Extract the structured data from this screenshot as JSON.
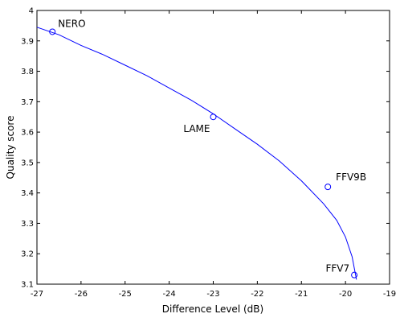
{
  "chart_data": {
    "type": "scatter",
    "title": "",
    "xlabel": "Difference Level (dB)",
    "ylabel": "Quality score",
    "xlim": [
      -27,
      -19
    ],
    "ylim": [
      3.1,
      4
    ],
    "xticks": [
      -27,
      -26,
      -25,
      -24,
      -23,
      -22,
      -21,
      -20,
      -19
    ],
    "yticks": [
      3.1,
      3.2,
      3.3,
      3.4,
      3.5,
      3.6,
      3.7,
      3.8,
      3.9,
      4
    ],
    "grid": false,
    "points": [
      {
        "label": "NERO",
        "x": -26.65,
        "y": 3.93
      },
      {
        "label": "LAME",
        "x": -23.0,
        "y": 3.65
      },
      {
        "label": "FFV9B",
        "x": -20.4,
        "y": 3.42
      },
      {
        "label": "FFV7",
        "x": -19.8,
        "y": 3.13
      }
    ],
    "fit_curve": {
      "x": [
        -27.0,
        -26.5,
        -26.0,
        -25.5,
        -25.0,
        -24.5,
        -24.0,
        -23.5,
        -23.0,
        -22.5,
        -22.0,
        -21.5,
        -21.0,
        -20.5,
        -20.2,
        -20.0,
        -19.85,
        -19.75
      ],
      "y": [
        3.945,
        3.92,
        3.885,
        3.855,
        3.82,
        3.785,
        3.745,
        3.705,
        3.66,
        3.61,
        3.56,
        3.505,
        3.44,
        3.365,
        3.31,
        3.255,
        3.19,
        3.115
      ]
    },
    "colors": {
      "series": "#0000ff",
      "axis": "#000000"
    }
  }
}
